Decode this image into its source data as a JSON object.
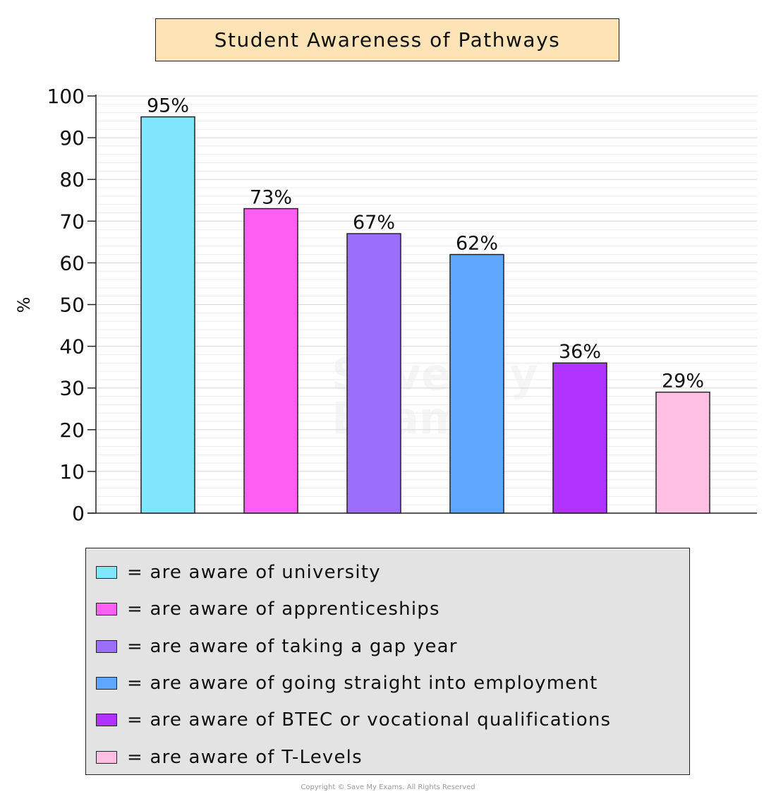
{
  "chart_data": {
    "type": "bar",
    "title": "Student Awareness of Pathways",
    "ylabel": "%",
    "xlabel": "",
    "ylim": [
      0,
      100
    ],
    "yticks": [
      0,
      10,
      20,
      30,
      40,
      50,
      60,
      70,
      80,
      90,
      100
    ],
    "grid": true,
    "legend_position": "bottom",
    "categories": [
      "are aware of university",
      "are aware of apprenticeships",
      "are aware of taking a gap year",
      "are aware of going straight into employment",
      "are aware of BTEC or vocational qualifications",
      "are aware of T-Levels"
    ],
    "values": [
      95,
      73,
      67,
      62,
      36,
      29
    ],
    "data_labels": [
      "95%",
      "73%",
      "67%",
      "62%",
      "36%",
      "29%"
    ],
    "colors": [
      "#7fe6fd",
      "#ff5ef2",
      "#9b6efc",
      "#5fa6fd",
      "#b133ff",
      "#ffc0e4"
    ]
  },
  "legend": {
    "items": [
      {
        "label": "= are aware of university",
        "color": "#7fe6fd"
      },
      {
        "label": "= are aware of apprenticeships",
        "color": "#ff5ef2"
      },
      {
        "label": "= are aware of taking a gap year",
        "color": "#9b6efc"
      },
      {
        "label": "= are aware of going straight into employment",
        "color": "#5fa6fd"
      },
      {
        "label": "= are aware of BTEC or vocational qualifications",
        "color": "#b133ff"
      },
      {
        "label": "= are aware of T-Levels",
        "color": "#ffc0e4"
      }
    ]
  },
  "watermark": {
    "line1": "Save My",
    "line2": "Exams"
  },
  "copyright": "Copyright © Save My Exams. All Rights Reserved"
}
